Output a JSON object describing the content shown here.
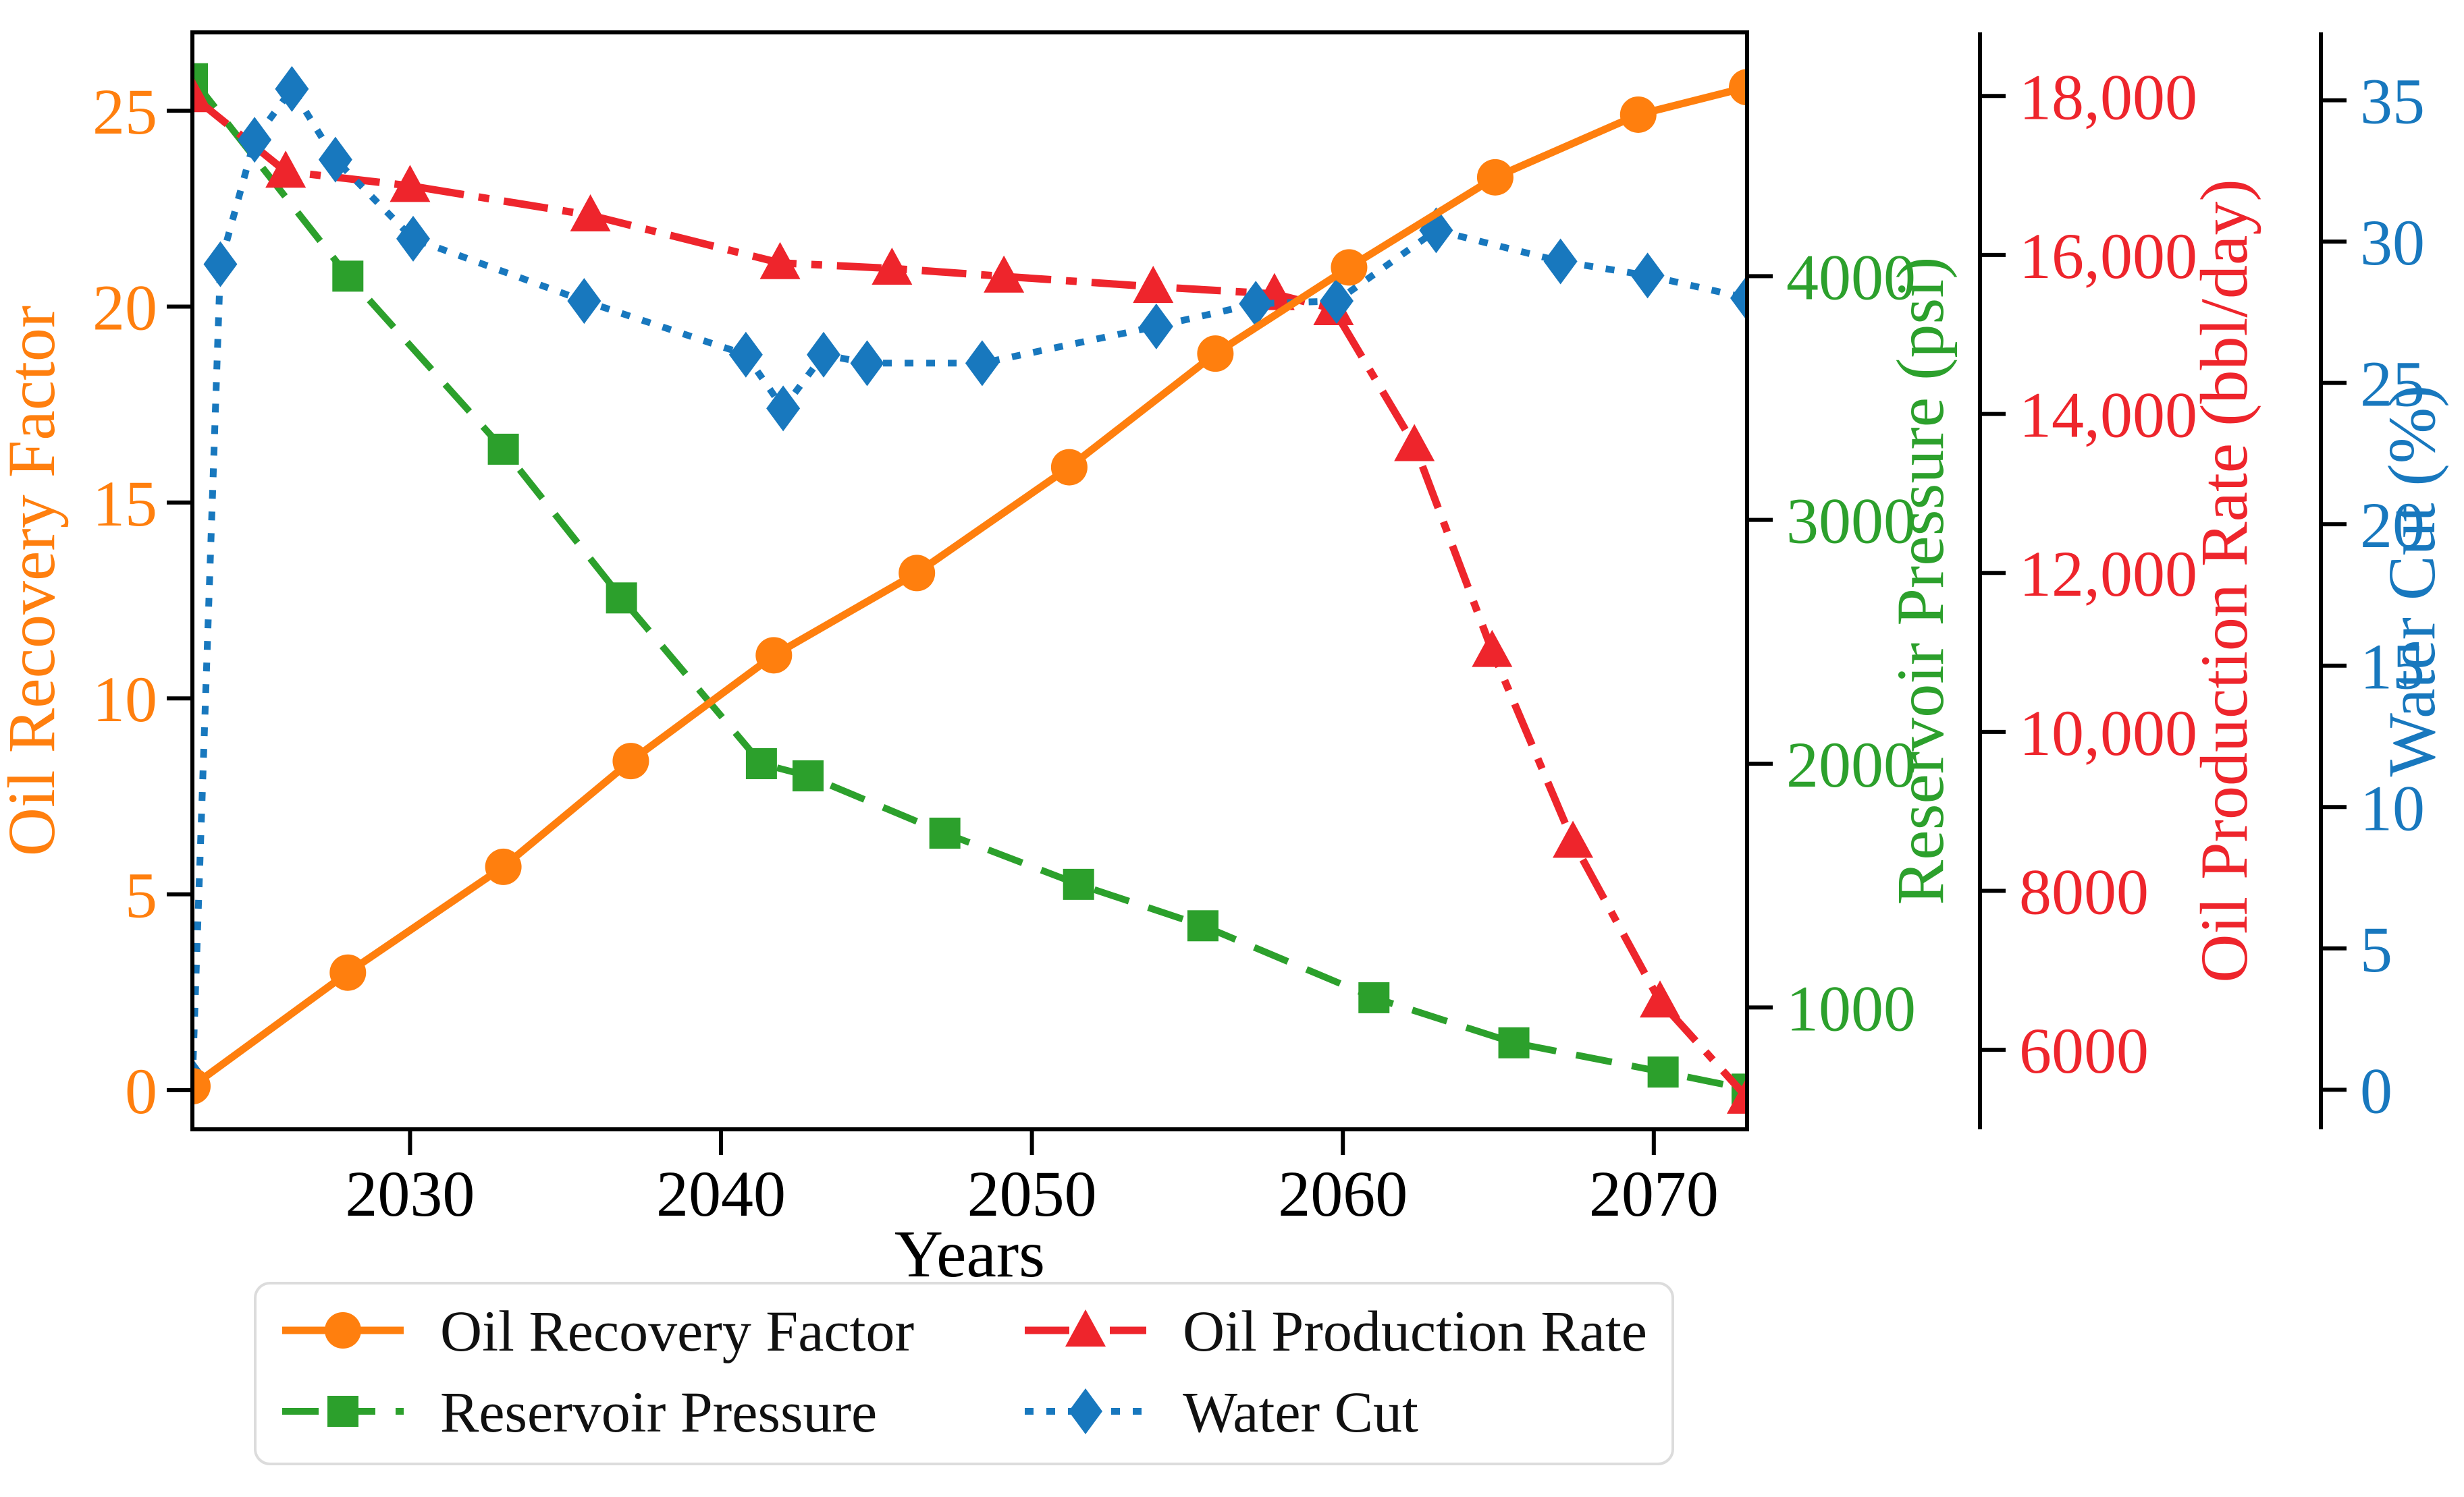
{
  "chart_data": {
    "type": "line",
    "title": "",
    "xlabel": "Years",
    "x_range": [
      2023,
      2073
    ],
    "x_ticks": [
      {
        "v": 2030,
        "label": "2030"
      },
      {
        "v": 2040,
        "label": "2040"
      },
      {
        "v": 2050,
        "label": "2050"
      },
      {
        "v": 2060,
        "label": "2060"
      },
      {
        "v": 2070,
        "label": "2070"
      }
    ],
    "axes": {
      "orf": {
        "title": "Oil Recovery Factor",
        "color": "#ff7f0e",
        "side": "left",
        "range": [
          -1,
          27
        ],
        "ticks": [
          {
            "v": 0,
            "label": "0"
          },
          {
            "v": 5,
            "label": "5"
          },
          {
            "v": 10,
            "label": "10"
          },
          {
            "v": 15,
            "label": "15"
          },
          {
            "v": 20,
            "label": "20"
          },
          {
            "v": 25,
            "label": "25"
          }
        ]
      },
      "pressure": {
        "title": "Reservoir Pressure (psi)",
        "color": "#2ca02c",
        "side": "right",
        "range": [
          500,
          5000
        ],
        "ticks": [
          {
            "v": 1000,
            "label": "1000"
          },
          {
            "v": 2000,
            "label": "2000"
          },
          {
            "v": 3000,
            "label": "3000"
          },
          {
            "v": 4000,
            "label": "4000"
          }
        ]
      },
      "rate": {
        "title": "Oil Production Rate (bbl/day)",
        "color": "#ee252c",
        "side": "right-offset-1",
        "range": [
          5000,
          18800
        ],
        "ticks": [
          {
            "v": 6000,
            "label": "6000"
          },
          {
            "v": 8000,
            "label": "8000"
          },
          {
            "v": 10000,
            "label": "10,000"
          },
          {
            "v": 12000,
            "label": "12,000"
          },
          {
            "v": 14000,
            "label": "14,000"
          },
          {
            "v": 16000,
            "label": "16,000"
          },
          {
            "v": 18000,
            "label": "18,000"
          }
        ]
      },
      "watercut": {
        "title": "Water Cut (%)",
        "color": "#1878be",
        "side": "right-offset-2",
        "range": [
          -1.4,
          37.4
        ],
        "ticks": [
          {
            "v": 0,
            "label": "0"
          },
          {
            "v": 5,
            "label": "5"
          },
          {
            "v": 10,
            "label": "10"
          },
          {
            "v": 15,
            "label": "15"
          },
          {
            "v": 20,
            "label": "20"
          },
          {
            "v": 25,
            "label": "25"
          },
          {
            "v": 30,
            "label": "30"
          },
          {
            "v": 35,
            "label": "35"
          }
        ]
      }
    },
    "series": [
      {
        "name": "Reservoir Pressure",
        "axis": "pressure",
        "color": "#2ca02c",
        "marker": "square",
        "line": "dashed",
        "points": [
          [
            2023,
            4810
          ],
          [
            2028,
            4000
          ],
          [
            2033,
            3290
          ],
          [
            2036.8,
            2680
          ],
          [
            2041.3,
            2000
          ],
          [
            2042.8,
            1950
          ],
          [
            2047.2,
            1715
          ],
          [
            2051.5,
            1505
          ],
          [
            2055.5,
            1335
          ],
          [
            2061,
            1040
          ],
          [
            2065.5,
            855
          ],
          [
            2070.3,
            735
          ],
          [
            2073,
            665
          ]
        ]
      },
      {
        "name": "Oil Production Rate",
        "axis": "rate",
        "color": "#ee252c",
        "marker": "triangle",
        "line": "dashdot",
        "points": [
          [
            2023,
            18000
          ],
          [
            2026,
            17050
          ],
          [
            2030,
            16870
          ],
          [
            2035.8,
            16500
          ],
          [
            2041.9,
            15900
          ],
          [
            2045.5,
            15830
          ],
          [
            2049.1,
            15730
          ],
          [
            2053.9,
            15600
          ],
          [
            2057.8,
            15510
          ],
          [
            2059.7,
            15320
          ],
          [
            2062.3,
            13610
          ],
          [
            2064.8,
            11020
          ],
          [
            2067.4,
            8620
          ],
          [
            2070.2,
            6610
          ],
          [
            2073,
            5400
          ]
        ]
      },
      {
        "name": "Water Cut",
        "axis": "watercut",
        "color": "#1878be",
        "marker": "diamond",
        "line": "dotted",
        "points": [
          [
            2023,
            0.3
          ],
          [
            2023.9,
            29.2
          ],
          [
            2025,
            33.6
          ],
          [
            2026.2,
            35.4
          ],
          [
            2027.6,
            32.9
          ],
          [
            2030.1,
            30.1
          ],
          [
            2035.6,
            27.9
          ],
          [
            2040.8,
            26.0
          ],
          [
            2042,
            24.1
          ],
          [
            2043.3,
            26.0
          ],
          [
            2044.7,
            25.7
          ],
          [
            2048.4,
            25.7
          ],
          [
            2054,
            27.0
          ],
          [
            2057.2,
            27.8
          ],
          [
            2059.8,
            27.9
          ],
          [
            2063,
            30.4
          ],
          [
            2067,
            29.3
          ],
          [
            2069.8,
            28.8
          ],
          [
            2073,
            28.0
          ]
        ]
      },
      {
        "name": "Oil Recovery Factor",
        "axis": "orf",
        "color": "#ff7f0e",
        "marker": "circle",
        "line": "solid",
        "points": [
          [
            2023,
            0.1
          ],
          [
            2028,
            3.0
          ],
          [
            2033,
            5.7
          ],
          [
            2037.1,
            8.4
          ],
          [
            2041.7,
            11.1
          ],
          [
            2046.3,
            13.2
          ],
          [
            2051.2,
            15.9
          ],
          [
            2055.9,
            18.8
          ],
          [
            2060.2,
            21.0
          ],
          [
            2064.9,
            23.3
          ],
          [
            2069.5,
            24.9
          ],
          [
            2073,
            25.6
          ]
        ]
      }
    ],
    "legend": {
      "position": "below-left",
      "border_color": "#dcdcdc",
      "items": [
        {
          "label": "Oil Recovery Factor",
          "series": "Oil Recovery Factor"
        },
        {
          "label": "Reservoir Pressure",
          "series": "Reservoir Pressure"
        },
        {
          "label": "Oil Production Rate",
          "series": "Oil Production Rate"
        },
        {
          "label": "Water Cut",
          "series": "Water Cut"
        }
      ]
    },
    "layout_hints": {
      "grid": false,
      "background": "#ffffff",
      "spine_color": "#000000"
    }
  }
}
